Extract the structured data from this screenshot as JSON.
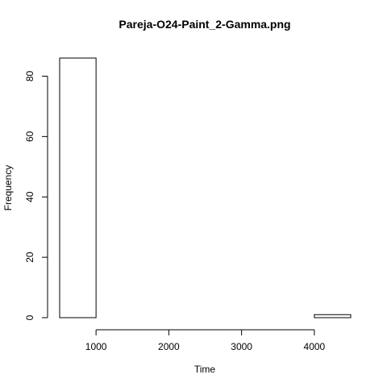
{
  "chart_data": {
    "type": "bar",
    "title": "Pareja-O24-Paint_2-Gamma.png",
    "xlabel": "Time",
    "ylabel": "Frequency",
    "bins": [
      {
        "start": 500,
        "end": 1000,
        "count": 86
      },
      {
        "start": 1000,
        "end": 1500,
        "count": 0
      },
      {
        "start": 1500,
        "end": 2000,
        "count": 0
      },
      {
        "start": 2000,
        "end": 2500,
        "count": 0
      },
      {
        "start": 2500,
        "end": 3000,
        "count": 0
      },
      {
        "start": 3000,
        "end": 3500,
        "count": 0
      },
      {
        "start": 3500,
        "end": 4000,
        "count": 0
      },
      {
        "start": 4000,
        "end": 4500,
        "count": 1
      }
    ],
    "xlim": [
      500,
      4500
    ],
    "ylim": [
      0,
      86
    ],
    "x_ticks": [
      1000,
      2000,
      3000,
      4000
    ],
    "x_tick_labels": [
      "1000",
      "2000",
      "3000",
      "4000"
    ],
    "y_ticks": [
      0,
      20,
      40,
      60,
      80
    ],
    "y_tick_labels": [
      "0",
      "20",
      "40",
      "60",
      "80"
    ],
    "grid": false,
    "legend": "none",
    "bar_fill": "#ffffff",
    "bar_stroke": "#000000"
  }
}
